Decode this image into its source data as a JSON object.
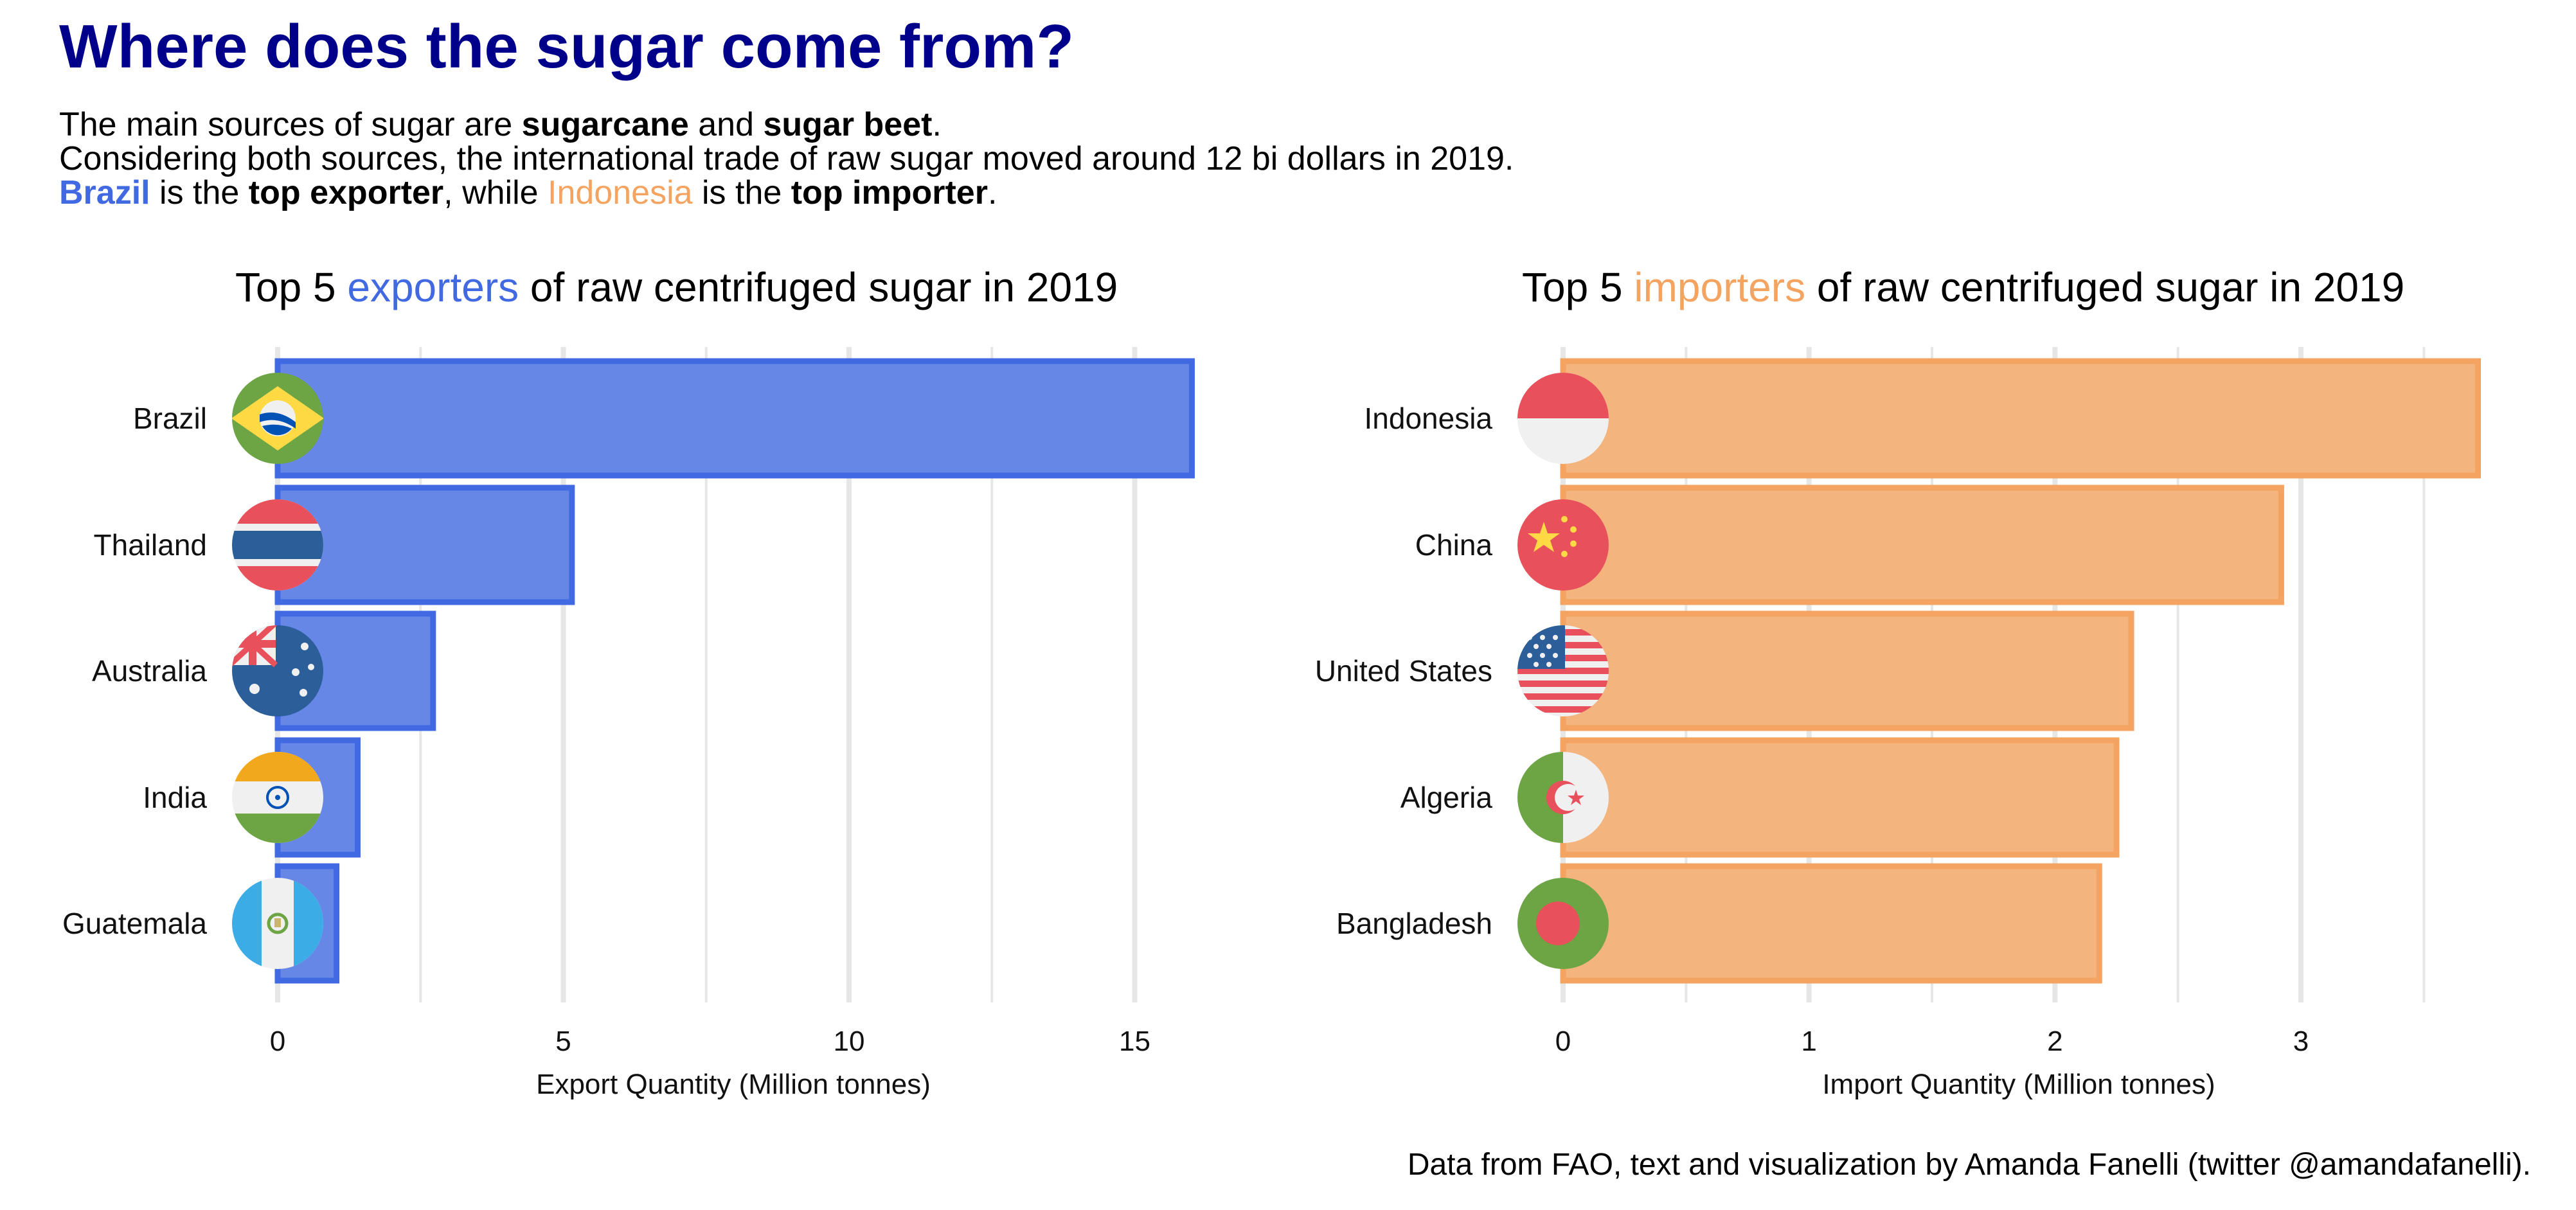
{
  "title": "Where does the sugar come from?",
  "subtitle": {
    "line1": {
      "a": "The main sources of sugar are ",
      "b": "sugarcane",
      "c": " and ",
      "d": "sugar beet",
      "e": "."
    },
    "line2": "Considering both sources, the international trade of raw sugar moved around 12 bi dollars in 2019.",
    "line3": {
      "a": "Brazil",
      "b": " is the ",
      "c": "top exporter",
      "d": ", while ",
      "e": "Indonesia",
      "f": " is the ",
      "g": "top importer",
      "h": "."
    }
  },
  "exporters_title": {
    "a": "Top 5 ",
    "b": "exporters",
    "c": " of raw centrifuged sugar in 2019"
  },
  "importers_title": {
    "a": "Top 5 ",
    "b": "importers",
    "c": " of raw centrifuged sugar in 2019"
  },
  "caption": "Data from FAO, text and visualization by Amanda Fanelli (twitter @amandafanelli).",
  "colors": {
    "exporters": "#4169E1",
    "importers": "#F4A460",
    "title": "#00008B"
  },
  "chart_data": [
    {
      "type": "bar",
      "orientation": "horizontal",
      "categories": [
        "Brazil",
        "Thailand",
        "Australia",
        "India",
        "Guatemala"
      ],
      "values": [
        16.0,
        5.15,
        2.72,
        1.4,
        1.03
      ],
      "flags": [
        "brazil-flag-icon",
        "thailand-flag-icon",
        "australia-flag-icon",
        "india-flag-icon",
        "guatemala-flag-icon"
      ],
      "xlabel": "Export Quantity (Million tonnes)",
      "xticks": [
        0,
        5,
        10,
        15
      ],
      "xlim": [
        0,
        16.4
      ],
      "grid": true
    },
    {
      "type": "bar",
      "orientation": "horizontal",
      "categories": [
        "Indonesia",
        "China",
        "United States",
        "Algeria",
        "Bangladesh"
      ],
      "values": [
        3.72,
        2.92,
        2.31,
        2.25,
        2.18
      ],
      "flags": [
        "indonesia-flag-icon",
        "china-flag-icon",
        "united-states-flag-icon",
        "algeria-flag-icon",
        "bangladesh-flag-icon"
      ],
      "xlabel": "Import Quantity (Million tonnes)",
      "xticks": [
        0,
        1,
        2,
        3
      ],
      "xlim": [
        0,
        3.81
      ],
      "grid": true
    }
  ]
}
